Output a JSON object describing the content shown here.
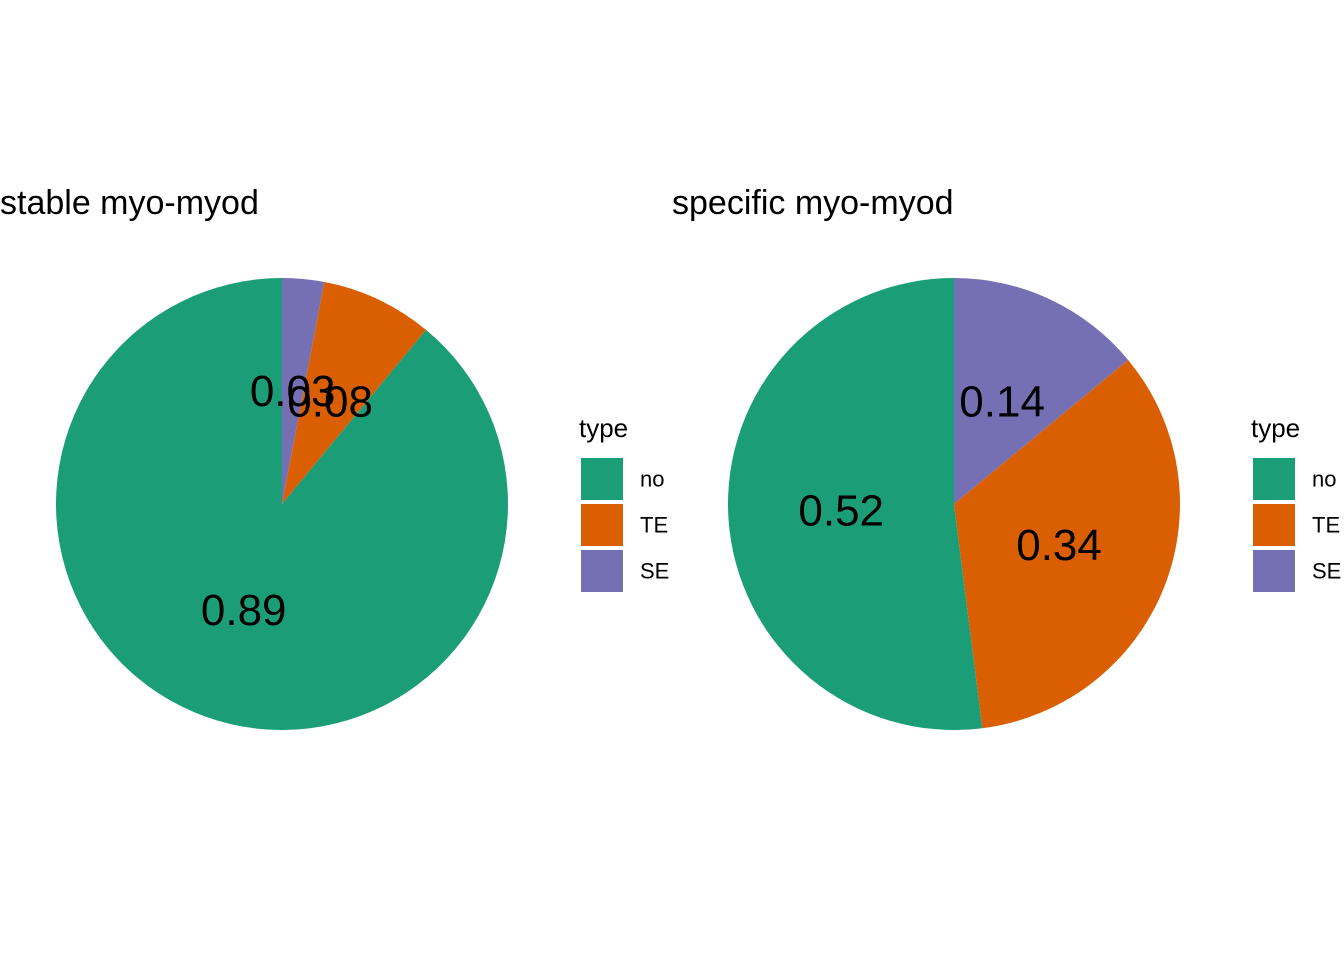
{
  "colors": {
    "no": "#1b9e77",
    "TE": "#d95f02",
    "SE": "#7570b3",
    "background": "#ffffff"
  },
  "chart_data": [
    {
      "type": "pie",
      "title": "stable myo-myod",
      "slices": [
        {
          "category": "SE",
          "value": 0.03,
          "label": "0.03"
        },
        {
          "category": "TE",
          "value": 0.08,
          "label": "0.08"
        },
        {
          "category": "no",
          "value": 0.89,
          "label": "0.89"
        }
      ],
      "legend": {
        "title": "type",
        "entries": [
          "no",
          "TE",
          "SE"
        ],
        "placement": "right"
      }
    },
    {
      "type": "pie",
      "title": "specific myo-myod",
      "slices": [
        {
          "category": "SE",
          "value": 0.14,
          "label": "0.14"
        },
        {
          "category": "TE",
          "value": 0.34,
          "label": "0.34"
        },
        {
          "category": "no",
          "value": 0.52,
          "label": "0.52"
        }
      ],
      "legend": {
        "title": "type",
        "entries": [
          "no",
          "TE",
          "SE"
        ],
        "placement": "right"
      }
    }
  ]
}
